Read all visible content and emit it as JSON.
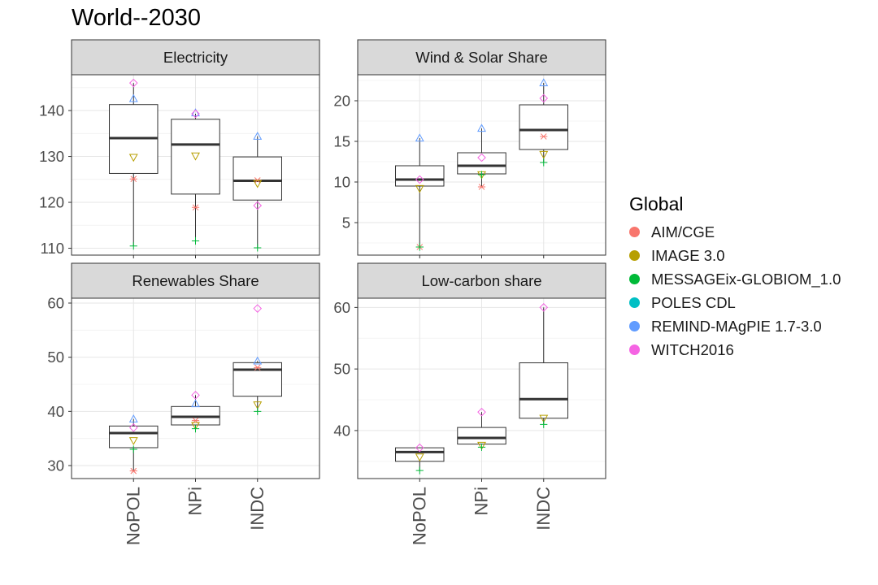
{
  "title": "World--2030",
  "legend": {
    "title": "Global",
    "entries": [
      {
        "name": "AIM/CGE",
        "color": "#F8766D",
        "shape": "asterisk"
      },
      {
        "name": "IMAGE 3.0",
        "color": "#B79F00",
        "shape": "triangle-down"
      },
      {
        "name": "MESSAGEix-GLOBIOM_1.0",
        "color": "#00BA38",
        "shape": "plus"
      },
      {
        "name": "POLES CDL",
        "color": "#00BFC4",
        "shape": "square"
      },
      {
        "name": "REMIND-MAgPIE 1.7-3.0",
        "color": "#619CFF",
        "shape": "triangle-up"
      },
      {
        "name": "WITCH2016",
        "color": "#F564E3",
        "shape": "diamond"
      }
    ]
  },
  "chart_data": [
    {
      "type": "boxplot",
      "title": "Electricity",
      "categories": [
        "NoPOL",
        "NPi",
        "INDC"
      ],
      "ylim": [
        108.5,
        147.8
      ],
      "yticks": [
        110,
        120,
        130,
        140
      ],
      "grid": true,
      "boxes": [
        {
          "whisker_low": 110.5,
          "q1": 126.3,
          "median": 134.0,
          "q3": 141.3,
          "whisker_high": 146.0
        },
        {
          "whisker_low": 111.6,
          "q1": 121.8,
          "median": 132.6,
          "q3": 138.1,
          "whisker_high": 139.3
        },
        {
          "whisker_low": 110.1,
          "q1": 120.5,
          "median": 124.7,
          "q3": 129.9,
          "whisker_high": 134.4
        }
      ],
      "series": [
        {
          "name": "AIM/CGE",
          "values": [
            125.1,
            118.9,
            124.8
          ]
        },
        {
          "name": "IMAGE 3.0",
          "values": [
            129.8,
            130.1,
            124.1
          ]
        },
        {
          "name": "MESSAGEix-GLOBIOM_1.0",
          "values": [
            110.5,
            111.6,
            110.1
          ]
        },
        {
          "name": "REMIND-MAgPIE 1.7-3.0",
          "values": [
            142.6,
            139.5,
            134.4
          ]
        },
        {
          "name": "WITCH2016",
          "values": [
            146.0,
            139.3,
            119.3
          ]
        }
      ]
    },
    {
      "type": "boxplot",
      "title": "Wind & Solar Share",
      "categories": [
        "NoPOL",
        "NPi",
        "INDC"
      ],
      "ylim": [
        1.0,
        23.2
      ],
      "yticks": [
        5,
        10,
        15,
        20
      ],
      "grid": true,
      "boxes": [
        {
          "whisker_low": 2.0,
          "q1": 9.5,
          "median": 10.3,
          "q3": 12.0,
          "whisker_high": 15.4
        },
        {
          "whisker_low": 9.4,
          "q1": 11.0,
          "median": 12.0,
          "q3": 13.6,
          "whisker_high": 16.6
        },
        {
          "whisker_low": 12.4,
          "q1": 14.0,
          "median": 16.4,
          "q3": 19.5,
          "whisker_high": 22.2
        }
      ],
      "series": [
        {
          "name": "AIM/CGE",
          "values": [
            2.0,
            9.4,
            15.6
          ]
        },
        {
          "name": "IMAGE 3.0",
          "values": [
            9.2,
            10.9,
            13.4
          ]
        },
        {
          "name": "MESSAGEix-GLOBIOM_1.0",
          "values": [
            2.0,
            10.9,
            12.4
          ]
        },
        {
          "name": "REMIND-MAgPIE 1.7-3.0",
          "values": [
            15.4,
            16.6,
            22.2
          ]
        },
        {
          "name": "WITCH2016",
          "values": [
            10.3,
            13.0,
            20.3
          ]
        }
      ]
    },
    {
      "type": "boxplot",
      "title": "Renewables Share",
      "categories": [
        "NoPOL",
        "NPi",
        "INDC"
      ],
      "ylim": [
        27.6,
        60.9
      ],
      "yticks": [
        30,
        40,
        50,
        60
      ],
      "grid": true,
      "boxes": [
        {
          "whisker_low": 29.0,
          "q1": 33.3,
          "median": 36.0,
          "q3": 37.3,
          "whisker_high": 38.6
        },
        {
          "whisker_low": 36.8,
          "q1": 37.5,
          "median": 39.0,
          "q3": 40.9,
          "whisker_high": 43.0
        },
        {
          "whisker_low": 40.0,
          "q1": 42.8,
          "median": 47.7,
          "q3": 49.0,
          "whisker_high": 49.3
        }
      ],
      "series": [
        {
          "name": "AIM/CGE",
          "values": [
            29.0,
            38.3,
            48.1
          ]
        },
        {
          "name": "IMAGE 3.0",
          "values": [
            34.6,
            37.4,
            41.2
          ]
        },
        {
          "name": "MESSAGEix-GLOBIOM_1.0",
          "values": [
            33.0,
            36.8,
            40.0
          ]
        },
        {
          "name": "REMIND-MAgPIE 1.7-3.0",
          "values": [
            38.6,
            41.4,
            49.3
          ]
        },
        {
          "name": "WITCH2016",
          "values": [
            37.0,
            43.0,
            59.0
          ]
        }
      ]
    },
    {
      "type": "boxplot",
      "title": "Low-carbon share",
      "categories": [
        "NoPOL",
        "NPi",
        "INDC"
      ],
      "ylim": [
        32.2,
        61.5
      ],
      "yticks": [
        40,
        50,
        60
      ],
      "grid": true,
      "boxes": [
        {
          "whisker_low": 33.5,
          "q1": 35.0,
          "median": 36.5,
          "q3": 37.2,
          "whisker_high": 37.2
        },
        {
          "whisker_low": 37.3,
          "q1": 37.8,
          "median": 38.8,
          "q3": 40.5,
          "whisker_high": 43.0
        },
        {
          "whisker_low": 41.0,
          "q1": 42.0,
          "median": 45.1,
          "q3": 51.0,
          "whisker_high": 60.0
        }
      ],
      "series": [
        {
          "name": "IMAGE 3.0",
          "values": [
            35.7,
            37.6,
            42.0
          ]
        },
        {
          "name": "MESSAGEix-GLOBIOM_1.0",
          "values": [
            33.5,
            37.3,
            41.0
          ]
        },
        {
          "name": "WITCH2016",
          "values": [
            37.2,
            43.0,
            60.0
          ]
        }
      ]
    }
  ]
}
